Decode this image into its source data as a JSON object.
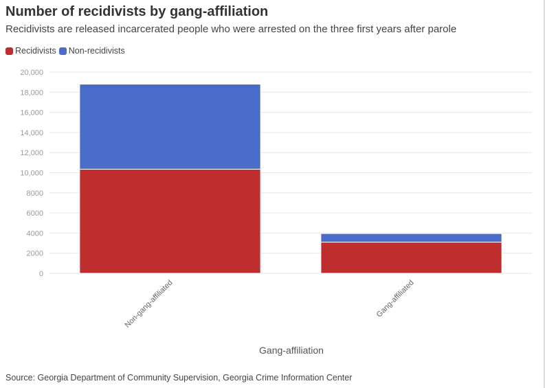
{
  "header": {
    "title": "Number of recidivists by gang-affiliation",
    "subtitle": "Recidivists are released incarcerated people who were arrested on the three first years after parole"
  },
  "footer": {
    "source": "Source: Georgia Department of Community Supervision, Georgia Crime Information Center"
  },
  "chart_data": {
    "type": "bar",
    "stacked": true,
    "title": "Number of recidivists by gang-affiliation",
    "subtitle": "Recidivists are released incarcerated people who were arrested on the three first years after parole",
    "xlabel": "Gang-affiliation",
    "ylabel": "",
    "categories": [
      "Non-gang-affiliated",
      "Gang-affiliated"
    ],
    "series": [
      {
        "name": "Recidivists",
        "color": "#be2e2e",
        "values": [
          10350,
          3100
        ]
      },
      {
        "name": "Non-recidivists",
        "color": "#4a6bc8",
        "values": [
          8450,
          850
        ]
      }
    ],
    "ylim": [
      0,
      20000
    ],
    "yticks": [
      "0",
      "2000",
      "4000",
      "6000",
      "8000",
      "10,000",
      "12,000",
      "14,000",
      "16,000",
      "18,000",
      "20,000"
    ],
    "ytick_values": [
      0,
      2000,
      4000,
      6000,
      8000,
      10000,
      12000,
      14000,
      16000,
      18000,
      20000
    ],
    "grid": true,
    "legend_position": "top-left"
  }
}
